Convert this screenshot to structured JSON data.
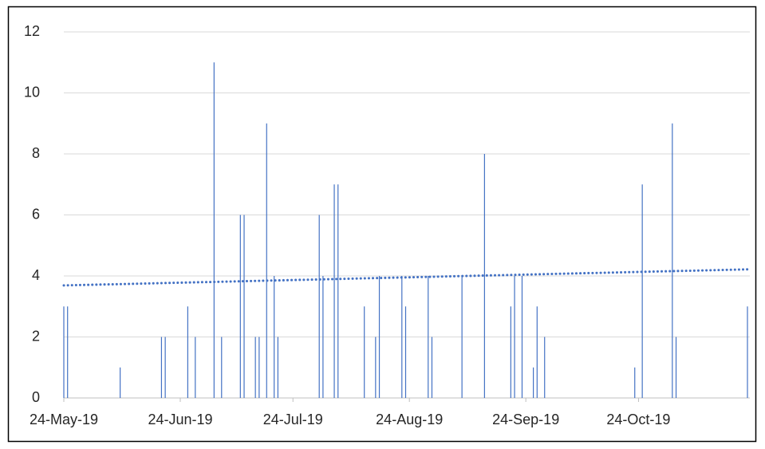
{
  "chart_data": {
    "type": "bar",
    "x": [
      "2019-05-24",
      "2019-05-25",
      "2019-06-08",
      "2019-06-19",
      "2019-06-20",
      "2019-06-26",
      "2019-06-28",
      "2019-07-03",
      "2019-07-05",
      "2019-07-10",
      "2019-07-11",
      "2019-07-14",
      "2019-07-15",
      "2019-07-17",
      "2019-07-19",
      "2019-07-20",
      "2019-07-31",
      "2019-08-01",
      "2019-08-04",
      "2019-08-05",
      "2019-08-12",
      "2019-08-15",
      "2019-08-16",
      "2019-08-22",
      "2019-08-23",
      "2019-08-29",
      "2019-08-30",
      "2019-09-07",
      "2019-09-13",
      "2019-09-20",
      "2019-09-21",
      "2019-09-23",
      "2019-09-26",
      "2019-09-27",
      "2019-09-29",
      "2019-10-23",
      "2019-10-25",
      "2019-11-02",
      "2019-11-03",
      "2019-11-22"
    ],
    "values": [
      3,
      3,
      1,
      2,
      2,
      3,
      2,
      11,
      2,
      6,
      6,
      2,
      2,
      9,
      4,
      2,
      6,
      4,
      7,
      7,
      3,
      2,
      4,
      4,
      3,
      4,
      2,
      4,
      8,
      3,
      4,
      4,
      1,
      3,
      2,
      1,
      7,
      9,
      2,
      3
    ],
    "color": "#4472c4",
    "trendline": "linear",
    "xlim": [
      "2019-05-24",
      "2019-11-22"
    ],
    "xticks": [
      {
        "value": "2019-05-24",
        "label": "24-May-19"
      },
      {
        "value": "2019-06-24",
        "label": "24-Jun-19"
      },
      {
        "value": "2019-07-24",
        "label": "24-Jul-19"
      },
      {
        "value": "2019-08-24",
        "label": "24-Aug-19"
      },
      {
        "value": "2019-09-24",
        "label": "24-Sep-19"
      },
      {
        "value": "2019-10-24",
        "label": "24-Oct-19"
      }
    ],
    "ylim": [
      0,
      12
    ],
    "yticks": [
      0,
      2,
      4,
      6,
      8,
      10,
      12
    ],
    "grid": true
  }
}
